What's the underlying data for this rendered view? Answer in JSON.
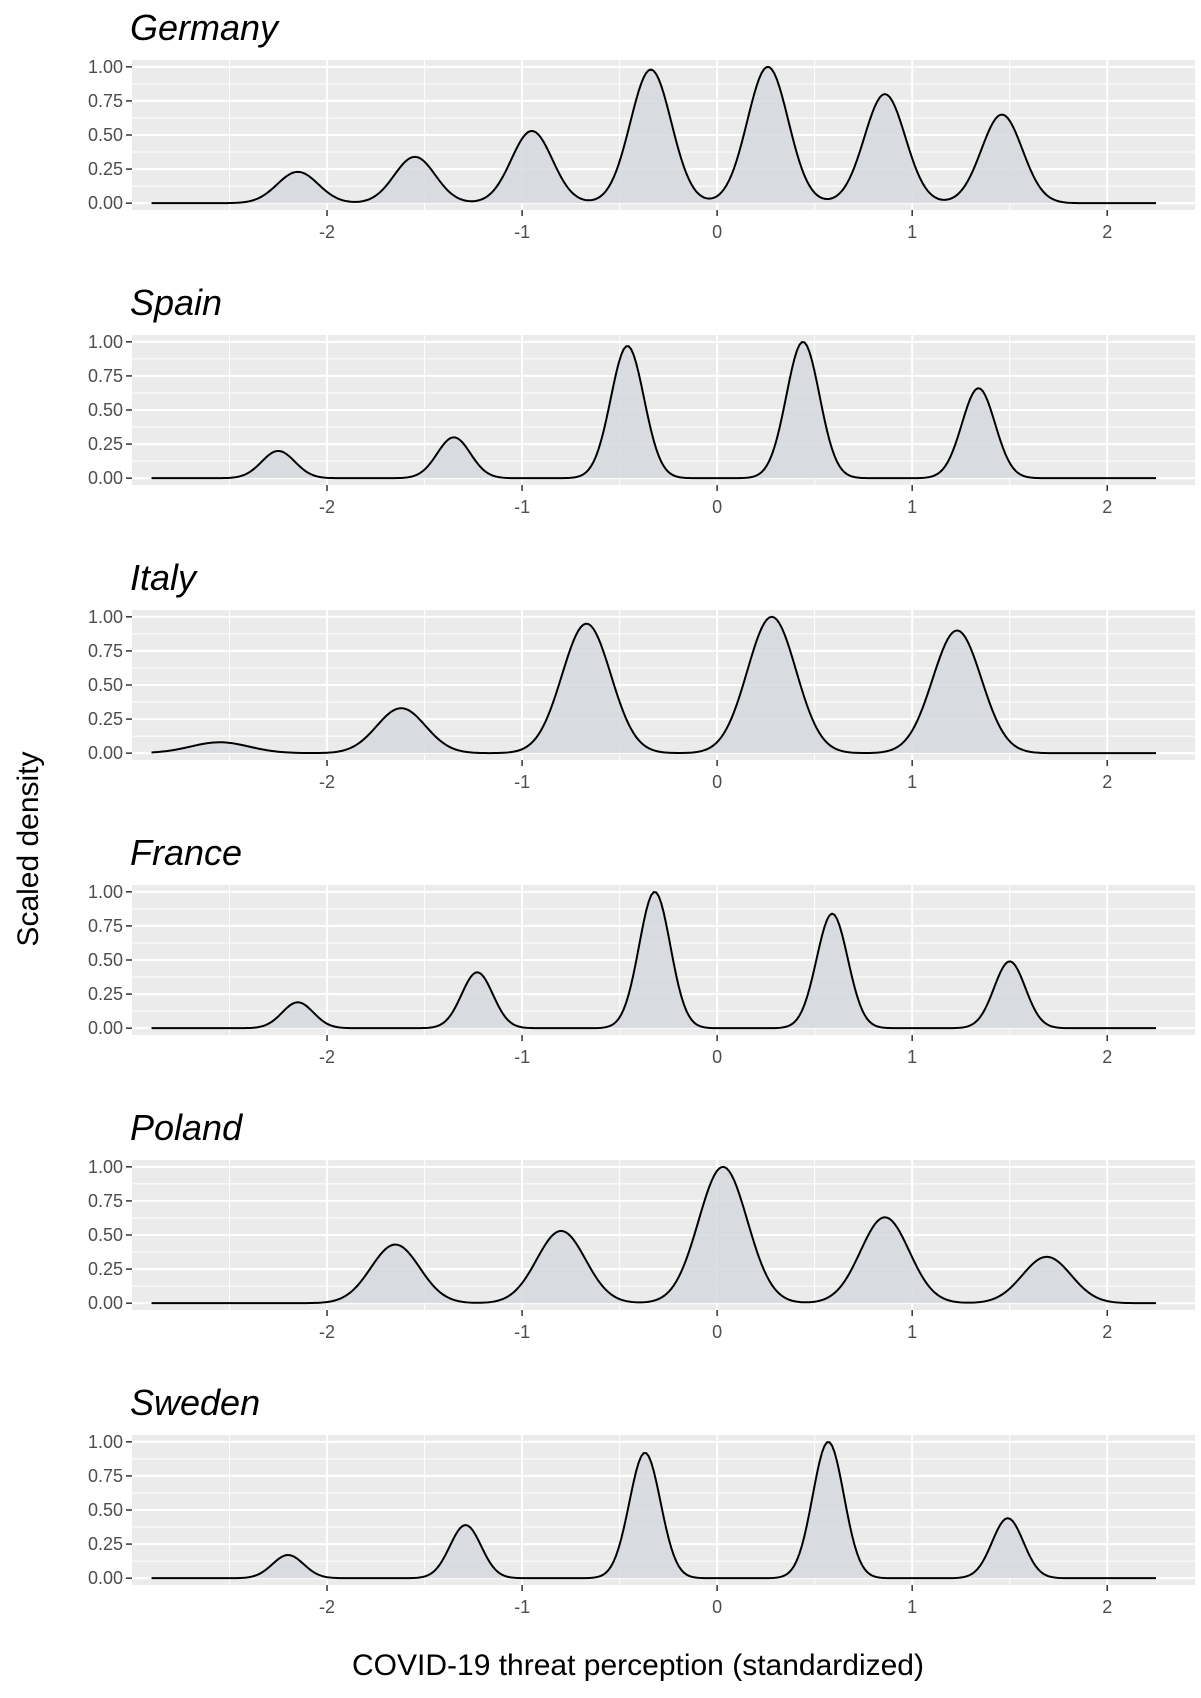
{
  "chart_data": {
    "type": "area",
    "xlabel": "COVID-19 threat perception (standardized)",
    "ylabel": "Scaled density",
    "xlim": [
      -3.0,
      2.45
    ],
    "ylim": [
      0,
      1.0
    ],
    "x_ticks": [
      -2,
      -1,
      0,
      1,
      2
    ],
    "y_ticks": [
      0.0,
      0.25,
      0.5,
      0.75,
      1.0
    ],
    "x_tick_labels": [
      "-2",
      "-1",
      "0",
      "1",
      "2"
    ],
    "y_tick_labels": [
      "0.00",
      "0.25",
      "0.50",
      "0.75",
      "1.00"
    ],
    "x_range": [
      -2.9,
      2.25
    ],
    "grid": true,
    "colors": {
      "panel_bg": "#ebebeb",
      "fill": "#d5d9de",
      "line": "#000000",
      "grid": "#ffffff"
    },
    "panels": [
      {
        "title": "Germany",
        "peaks": [
          {
            "x": -2.15,
            "height": 0.23,
            "width": 0.105
          },
          {
            "x": -1.55,
            "height": 0.34,
            "width": 0.105
          },
          {
            "x": -0.95,
            "height": 0.53,
            "width": 0.105
          },
          {
            "x": -0.34,
            "height": 0.98,
            "width": 0.105
          },
          {
            "x": 0.26,
            "height": 1.0,
            "width": 0.105
          },
          {
            "x": 0.86,
            "height": 0.8,
            "width": 0.105
          },
          {
            "x": 1.46,
            "height": 0.65,
            "width": 0.105
          }
        ]
      },
      {
        "title": "Spain",
        "peaks": [
          {
            "x": -2.25,
            "height": 0.2,
            "width": 0.085
          },
          {
            "x": -1.35,
            "height": 0.3,
            "width": 0.085
          },
          {
            "x": -0.46,
            "height": 0.97,
            "width": 0.085
          },
          {
            "x": 0.44,
            "height": 1.0,
            "width": 0.085
          },
          {
            "x": 1.34,
            "height": 0.66,
            "width": 0.085
          }
        ]
      },
      {
        "title": "Italy",
        "peaks": [
          {
            "x": -2.55,
            "height": 0.08,
            "width": 0.15
          },
          {
            "x": -1.62,
            "height": 0.33,
            "width": 0.125
          },
          {
            "x": -0.67,
            "height": 0.95,
            "width": 0.125
          },
          {
            "x": 0.28,
            "height": 1.0,
            "width": 0.125
          },
          {
            "x": 1.23,
            "height": 0.9,
            "width": 0.125
          }
        ]
      },
      {
        "title": "France",
        "peaks": [
          {
            "x": -2.15,
            "height": 0.19,
            "width": 0.08
          },
          {
            "x": -1.23,
            "height": 0.41,
            "width": 0.08
          },
          {
            "x": -0.32,
            "height": 1.0,
            "width": 0.08
          },
          {
            "x": 0.59,
            "height": 0.84,
            "width": 0.08
          },
          {
            "x": 1.5,
            "height": 0.49,
            "width": 0.08
          }
        ]
      },
      {
        "title": "Poland",
        "peaks": [
          {
            "x": -1.65,
            "height": 0.43,
            "width": 0.125
          },
          {
            "x": -0.8,
            "height": 0.53,
            "width": 0.125
          },
          {
            "x": 0.03,
            "height": 1.0,
            "width": 0.125
          },
          {
            "x": 0.86,
            "height": 0.63,
            "width": 0.125
          },
          {
            "x": 1.69,
            "height": 0.34,
            "width": 0.125
          }
        ]
      },
      {
        "title": "Sweden",
        "peaks": [
          {
            "x": -2.2,
            "height": 0.17,
            "width": 0.08
          },
          {
            "x": -1.29,
            "height": 0.39,
            "width": 0.08
          },
          {
            "x": -0.37,
            "height": 0.92,
            "width": 0.08
          },
          {
            "x": 0.57,
            "height": 1.0,
            "width": 0.08
          },
          {
            "x": 1.49,
            "height": 0.44,
            "width": 0.08
          }
        ]
      }
    ]
  }
}
